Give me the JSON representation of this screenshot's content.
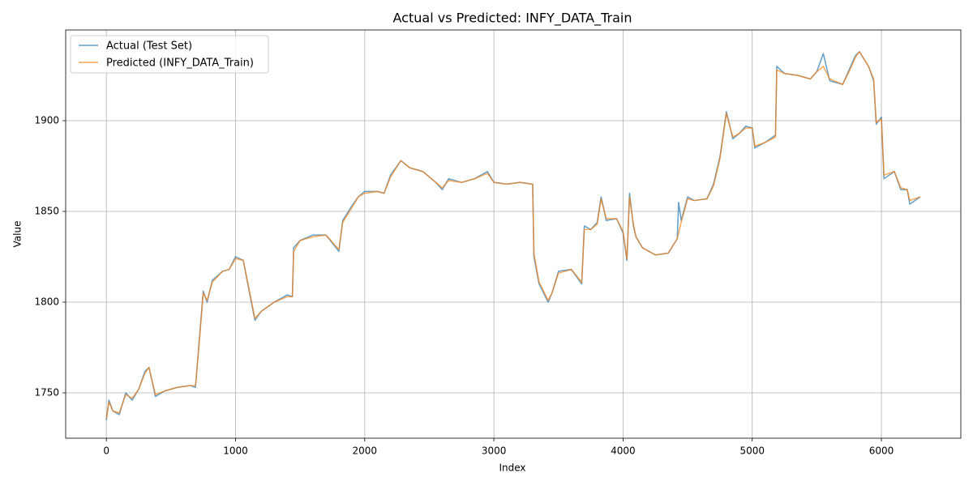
{
  "chart_data": {
    "type": "line",
    "title": "Actual vs Predicted: INFY_DATA_Train",
    "x_label": "Index",
    "y_label": "Value",
    "x": [
      0,
      20,
      50,
      100,
      150,
      200,
      250,
      300,
      330,
      380,
      450,
      550,
      650,
      690,
      720,
      750,
      780,
      820,
      900,
      950,
      1000,
      1060,
      1100,
      1150,
      1200,
      1300,
      1400,
      1440,
      1450,
      1500,
      1600,
      1700,
      1800,
      1830,
      1900,
      1950,
      2000,
      2100,
      2150,
      2200,
      2280,
      2350,
      2450,
      2550,
      2600,
      2650,
      2750,
      2850,
      2950,
      3000,
      3100,
      3200,
      3300,
      3310,
      3350,
      3420,
      3450,
      3500,
      3600,
      3680,
      3700,
      3750,
      3800,
      3830,
      3870,
      3950,
      4000,
      4030,
      4050,
      4080,
      4100,
      4150,
      4250,
      4350,
      4420,
      4430,
      4450,
      4500,
      4550,
      4650,
      4700,
      4750,
      4800,
      4850,
      4900,
      4950,
      5000,
      5020,
      5100,
      5180,
      5190,
      5250,
      5350,
      5450,
      5500,
      5550,
      5600,
      5700,
      5750,
      5800,
      5830,
      5900,
      5940,
      5960,
      6000,
      6020,
      6100,
      6150,
      6200,
      6220,
      6300
    ],
    "series": [
      {
        "name": "Actual (Test Set)",
        "color": "#1f77b4",
        "values": [
          1735,
          1746,
          1740,
          1738,
          1750,
          1746,
          1752,
          1762,
          1764,
          1748,
          1751,
          1753,
          1754,
          1753,
          1780,
          1806,
          1800,
          1812,
          1817,
          1818,
          1825,
          1823,
          1808,
          1790,
          1795,
          1800,
          1804,
          1803,
          1830,
          1834,
          1837,
          1837,
          1828,
          1845,
          1853,
          1858,
          1861,
          1861,
          1860,
          1870,
          1878,
          1874,
          1872,
          1866,
          1862,
          1868,
          1866,
          1868,
          1872,
          1866,
          1865,
          1866,
          1865,
          1825,
          1810,
          1800,
          1805,
          1817,
          1818,
          1810,
          1842,
          1840,
          1844,
          1858,
          1845,
          1846,
          1838,
          1823,
          1860,
          1842,
          1836,
          1830,
          1826,
          1827,
          1835,
          1855,
          1845,
          1858,
          1856,
          1857,
          1865,
          1880,
          1905,
          1890,
          1893,
          1897,
          1896,
          1885,
          1888,
          1892,
          1930,
          1926,
          1925,
          1923,
          1927,
          1937,
          1922,
          1920,
          1928,
          1936,
          1938,
          1930,
          1922,
          1898,
          1902,
          1868,
          1872,
          1862,
          1862,
          1854,
          1858
        ]
      },
      {
        "name": "Predicted (INFY_DATA_Train)",
        "color": "#ff7f0e",
        "values": [
          1736,
          1745,
          1740,
          1739,
          1749,
          1747,
          1752,
          1761,
          1764,
          1749,
          1751,
          1753,
          1754,
          1754,
          1778,
          1805,
          1801,
          1811,
          1817,
          1818,
          1824,
          1823,
          1809,
          1791,
          1795,
          1800,
          1803,
          1803,
          1828,
          1834,
          1836,
          1837,
          1829,
          1844,
          1852,
          1858,
          1860,
          1861,
          1860,
          1869,
          1878,
          1874,
          1872,
          1866,
          1863,
          1867,
          1866,
          1868,
          1871,
          1866,
          1865,
          1866,
          1865,
          1827,
          1811,
          1801,
          1805,
          1816,
          1818,
          1811,
          1840,
          1840,
          1843,
          1857,
          1846,
          1846,
          1839,
          1824,
          1858,
          1843,
          1836,
          1830,
          1826,
          1827,
          1835,
          1838,
          1844,
          1857,
          1856,
          1857,
          1864,
          1879,
          1904,
          1891,
          1893,
          1896,
          1896,
          1886,
          1888,
          1891,
          1928,
          1926,
          1925,
          1923,
          1927,
          1930,
          1923,
          1920,
          1927,
          1935,
          1938,
          1930,
          1923,
          1899,
          1901,
          1870,
          1872,
          1863,
          1862,
          1856,
          1858
        ]
      }
    ],
    "xlim": [
      -315,
      6615
    ],
    "ylim": [
      1725,
      1950
    ],
    "xticks": [
      0,
      1000,
      2000,
      3000,
      4000,
      5000,
      6000
    ],
    "yticks": [
      1750,
      1800,
      1850,
      1900
    ],
    "grid": true,
    "legend": "upper-left"
  }
}
